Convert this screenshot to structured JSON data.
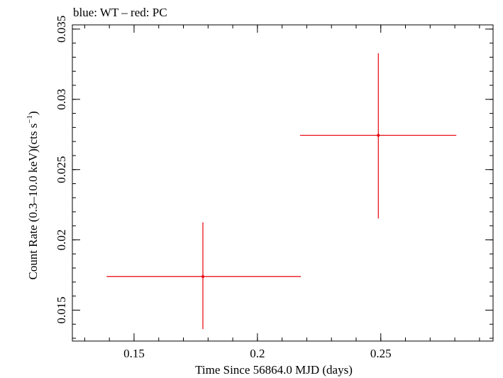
{
  "chart_data": {
    "type": "scatter",
    "title": "blue: WT – red: PC",
    "xlabel": "Time Since 56864.0 MJD (days)",
    "ylabel_main": "Count Rate (0.3–10.0 keV)(cts s",
    "ylabel_sup": "−1",
    "ylabel_close": ")",
    "xlim": [
      0.125,
      0.2955
    ],
    "ylim": [
      0.0128,
      0.0353
    ],
    "x_ticks": [
      {
        "value": 0.15,
        "label": "0.15"
      },
      {
        "value": 0.2,
        "label": "0.2"
      },
      {
        "value": 0.25,
        "label": "0.25"
      }
    ],
    "y_ticks": [
      {
        "value": 0.015,
        "label": "0.015"
      },
      {
        "value": 0.02,
        "label": "0.02"
      },
      {
        "value": 0.025,
        "label": "0.025"
      },
      {
        "value": 0.03,
        "label": "0.03"
      },
      {
        "value": 0.035,
        "label": "0.035"
      }
    ],
    "x_minor_step": 0.01,
    "y_minor_step": 0.001,
    "series": [
      {
        "color": "#e8000b",
        "points": [
          {
            "x": 0.1779,
            "y": 0.01739,
            "xlo": 0.1389,
            "xhi": 0.2176,
            "ylo": 0.01365,
            "yhi": 0.02125
          },
          {
            "x": 0.249,
            "y": 0.02744,
            "xlo": 0.2173,
            "xhi": 0.2806,
            "ylo": 0.02152,
            "yhi": 0.03328
          }
        ]
      }
    ]
  }
}
